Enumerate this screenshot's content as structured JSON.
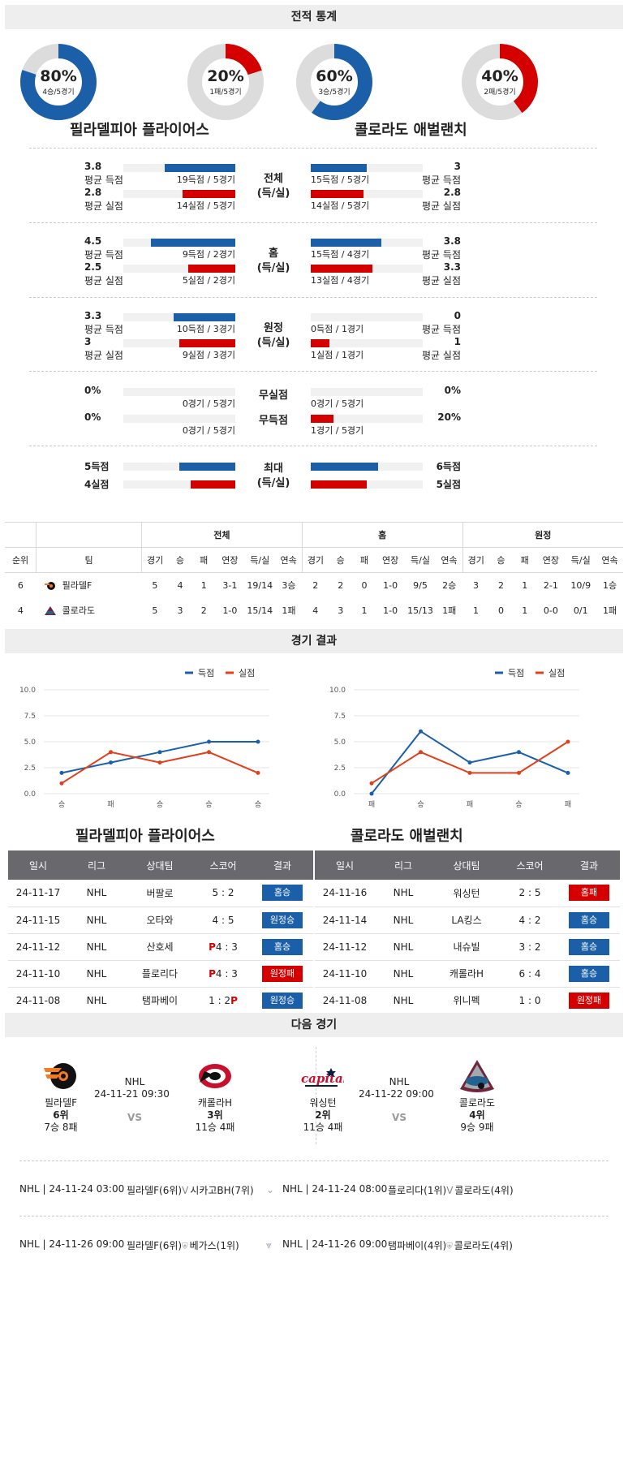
{
  "sections": {
    "record": "전적 통계",
    "results": "경기 결과",
    "next": "다음 경기"
  },
  "donuts": [
    {
      "pct": "80%",
      "sub": "4승/5경기",
      "fraction": 0.8,
      "color": "#1a5fa8"
    },
    {
      "pct": "20%",
      "sub": "1패/5경기",
      "fraction": 0.2,
      "color": "#d40000"
    },
    {
      "pct": "60%",
      "sub": "3승/5경기",
      "fraction": 0.6,
      "color": "#1a5fa8"
    },
    {
      "pct": "40%",
      "sub": "2패/5경기",
      "fraction": 0.4,
      "color": "#d40000"
    }
  ],
  "teams": {
    "home": "필라델피아 플라이어스",
    "away": "콜로라도 애벌랜치"
  },
  "labels": {
    "avg_score": "평균 득점",
    "avg_concede": "평균 실점"
  },
  "stat_groups": [
    {
      "cat": [
        "전체",
        "(득/실)"
      ],
      "rows": [
        {
          "l_val": "3.8",
          "l_lbl": "평균 득점",
          "l_cap": "19득점 / 5경기",
          "l_frac": 0.63,
          "r_val": "3",
          "r_lbl": "평균 득점",
          "r_cap": "15득점 / 5경기",
          "r_frac": 0.5,
          "color": "blue"
        },
        {
          "l_val": "2.8",
          "l_lbl": "평균 실점",
          "l_cap": "14실점 / 5경기",
          "l_frac": 0.47,
          "r_val": "2.8",
          "r_lbl": "평균 실점",
          "r_cap": "14실점 / 5경기",
          "r_frac": 0.47,
          "color": "red"
        }
      ]
    },
    {
      "cat": [
        "홈",
        "(득/실)"
      ],
      "rows": [
        {
          "l_val": "4.5",
          "l_lbl": "평균 득점",
          "l_cap": "9득점 / 2경기",
          "l_frac": 0.75,
          "r_val": "3.8",
          "r_lbl": "평균 득점",
          "r_cap": "15득점 / 4경기",
          "r_frac": 0.63,
          "color": "blue"
        },
        {
          "l_val": "2.5",
          "l_lbl": "평균 실점",
          "l_cap": "5실점 / 2경기",
          "l_frac": 0.42,
          "r_val": "3.3",
          "r_lbl": "평균 실점",
          "r_cap": "13실점 / 4경기",
          "r_frac": 0.55,
          "color": "red"
        }
      ]
    },
    {
      "cat": [
        "원정",
        "(득/실)"
      ],
      "rows": [
        {
          "l_val": "3.3",
          "l_lbl": "평균 득점",
          "l_cap": "10득점 / 3경기",
          "l_frac": 0.55,
          "r_val": "0",
          "r_lbl": "평균 득점",
          "r_cap": "0득점 / 1경기",
          "r_frac": 0.0,
          "color": "blue"
        },
        {
          "l_val": "3",
          "l_lbl": "평균 실점",
          "l_cap": "9실점 / 3경기",
          "l_frac": 0.5,
          "r_val": "1",
          "r_lbl": "평균 실점",
          "r_cap": "1실점 / 1경기",
          "r_frac": 0.17,
          "color": "red"
        }
      ]
    }
  ],
  "shutouts": {
    "cat1": "무실점",
    "cat2": "무득점",
    "rows": [
      {
        "l_val": "0%",
        "l_cap": "0경기 / 5경기",
        "l_frac": 0.0,
        "r_val": "0%",
        "r_cap": "0경기 / 5경기",
        "r_frac": 0.0
      },
      {
        "l_val": "0%",
        "l_cap": "0경기 / 5경기",
        "l_frac": 0.0,
        "r_val": "20%",
        "r_cap": "1경기 / 5경기",
        "r_frac": 0.2
      }
    ]
  },
  "max": {
    "cat": [
      "최대",
      "(득/실)"
    ],
    "rows": [
      {
        "l_val": "5득점",
        "l_frac": 0.5,
        "r_val": "6득점",
        "r_frac": 0.6,
        "color": "blue"
      },
      {
        "l_val": "4실점",
        "l_frac": 0.4,
        "r_val": "5실점",
        "r_frac": 0.5,
        "color": "red"
      }
    ]
  },
  "standings": {
    "groups": [
      "전체",
      "홈",
      "원정"
    ],
    "head_left": [
      "순위",
      "팀"
    ],
    "cols": [
      "경기",
      "승",
      "패",
      "연장",
      "득/실",
      "연속"
    ],
    "rows": [
      {
        "rank": "6",
        "team": "필라델F",
        "logo": "flyers-logo",
        "cells": [
          "5",
          "4",
          "1",
          "3-1",
          "19/14",
          "3승",
          "2",
          "2",
          "0",
          "1-0",
          "9/5",
          "2승",
          "3",
          "2",
          "1",
          "2-1",
          "10/9",
          "1승"
        ]
      },
      {
        "rank": "4",
        "team": "콜로라도",
        "logo": "avalanche-logo",
        "cells": [
          "5",
          "3",
          "2",
          "1-0",
          "15/14",
          "1패",
          "4",
          "3",
          "1",
          "1-0",
          "15/13",
          "1패",
          "1",
          "0",
          "1",
          "0-0",
          "0/1",
          "1패"
        ]
      }
    ]
  },
  "legend": {
    "score": "득점",
    "concede": "실점",
    "score_color": "#1a5fa8",
    "concede_color": "#e0401c"
  },
  "chart_data": [
    {
      "type": "line",
      "x": [
        "승",
        "패",
        "승",
        "승",
        "승"
      ],
      "ylim": [
        0,
        10
      ],
      "yticks": [
        "0.0",
        "2.5",
        "5.0",
        "7.5",
        "10.0"
      ],
      "series": [
        {
          "name": "득점",
          "values": [
            2,
            3,
            4,
            5,
            5
          ]
        },
        {
          "name": "실점",
          "values": [
            1,
            4,
            3,
            4,
            2
          ]
        }
      ]
    },
    {
      "type": "line",
      "x": [
        "패",
        "승",
        "패",
        "승",
        "패"
      ],
      "ylim": [
        0,
        10
      ],
      "yticks": [
        "0.0",
        "2.5",
        "5.0",
        "7.5",
        "10.0"
      ],
      "series": [
        {
          "name": "득점",
          "values": [
            0,
            6,
            3,
            4,
            2
          ]
        },
        {
          "name": "실점",
          "values": [
            1,
            4,
            2,
            2,
            5
          ]
        }
      ]
    }
  ],
  "results_tables": {
    "headers": [
      "일시",
      "리그",
      "상대팀",
      "스코어",
      "결과"
    ],
    "left": [
      {
        "date": "24-11-17",
        "league": "NHL",
        "opp": "버팔로",
        "p": "",
        "score": "5 : 2",
        "p_right": "",
        "result": "홈승",
        "color": "blue"
      },
      {
        "date": "24-11-15",
        "league": "NHL",
        "opp": "오타와",
        "p": "",
        "score": "4 : 5",
        "p_right": "",
        "result": "원정승",
        "color": "blue"
      },
      {
        "date": "24-11-12",
        "league": "NHL",
        "opp": "산호세",
        "p": "P",
        "score": "4 : 3",
        "p_right": "",
        "result": "홈승",
        "color": "blue"
      },
      {
        "date": "24-11-10",
        "league": "NHL",
        "opp": "플로리다",
        "p": "P",
        "score": "4 : 3",
        "p_right": "",
        "result": "원정패",
        "color": "red"
      },
      {
        "date": "24-11-08",
        "league": "NHL",
        "opp": "탬파베이",
        "p": "",
        "score": "1 : 2",
        "p_right": "P",
        "result": "원정승",
        "color": "blue"
      }
    ],
    "right": [
      {
        "date": "24-11-16",
        "league": "NHL",
        "opp": "워싱턴",
        "p": "",
        "score": "2 : 5",
        "p_right": "",
        "result": "홈패",
        "color": "red"
      },
      {
        "date": "24-11-14",
        "league": "NHL",
        "opp": "LA킹스",
        "p": "",
        "score": "4 : 2",
        "p_right": "",
        "result": "홈승",
        "color": "blue"
      },
      {
        "date": "24-11-12",
        "league": "NHL",
        "opp": "내슈빌",
        "p": "",
        "score": "3 : 2",
        "p_right": "",
        "result": "홈승",
        "color": "blue"
      },
      {
        "date": "24-11-10",
        "league": "NHL",
        "opp": "캐롤라H",
        "p": "",
        "score": "6 : 4",
        "p_right": "",
        "result": "홈승",
        "color": "blue"
      },
      {
        "date": "24-11-08",
        "league": "NHL",
        "opp": "위니펙",
        "p": "",
        "score": "1 : 0",
        "p_right": "",
        "result": "원정패",
        "color": "red"
      }
    ]
  },
  "next_games": [
    {
      "home": {
        "name": "필라델F",
        "rank": "6위",
        "rec": "7승 8패",
        "logo": "flyers-logo"
      },
      "league": "NHL",
      "time": "24-11-21 09:30",
      "vs": "VS",
      "away": {
        "name": "캐롤라H",
        "rank": "3위",
        "rec": "11승 4패",
        "logo": "hurricanes-logo"
      }
    },
    {
      "home": {
        "name": "워싱턴",
        "rank": "2위",
        "rec": "11승 4패",
        "logo": "capitals-logo"
      },
      "league": "NHL",
      "time": "24-11-22 09:00",
      "vs": "VS",
      "away": {
        "name": "콜로라도",
        "rank": "4위",
        "rec": "9승 9패",
        "logo": "avalanche-logo"
      }
    }
  ],
  "upcoming": [
    {
      "l_meta": "NHL | 24-11-24 03:00",
      "l_home": "필라델F(6위)",
      "l_v": "V",
      "l_away": "시카고BH(7위)",
      "r_meta": "NHL | 24-11-24 08:00",
      "r_home": "플로리다(1위)",
      "r_v": "V",
      "r_away": "콜로라도(4위)"
    },
    {
      "l_meta": "NHL | 24-11-26 09:00",
      "l_home": "필라델F(6위)",
      "l_v": "",
      "l_away": "베가스(1위)",
      "r_meta": "NHL | 24-11-26 09:00",
      "r_home": "탬파베이(4위)",
      "r_v": "",
      "r_away": "콜로라도(4위)"
    }
  ]
}
